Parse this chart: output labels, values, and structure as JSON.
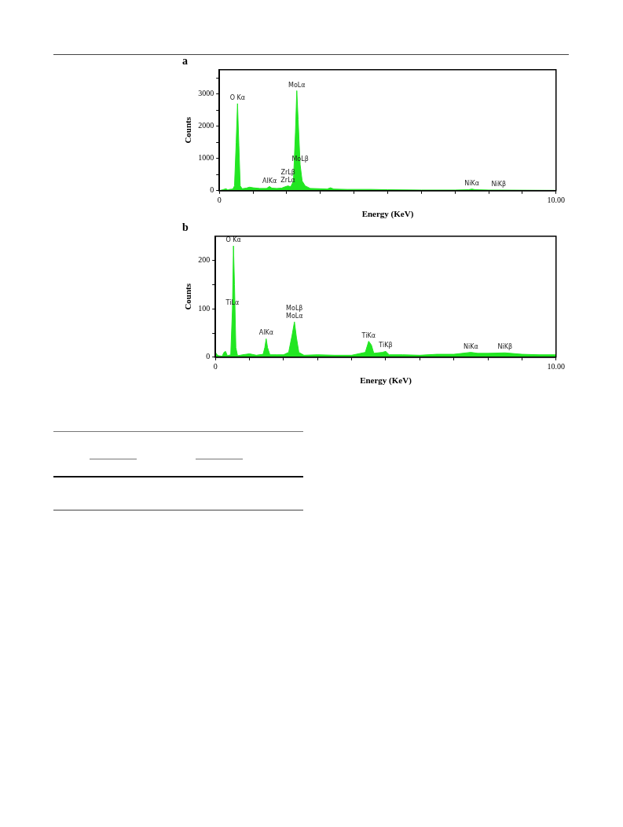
{
  "chart_data": [
    {
      "type": "area",
      "title": "a",
      "xlabel": "Energy (KeV)",
      "ylabel": "Counts",
      "color": "#22e622",
      "x": [
        0,
        0.1,
        0.2,
        0.25,
        0.3,
        0.4,
        0.45,
        0.5,
        0.54,
        0.58,
        0.62,
        0.68,
        0.8,
        0.9,
        1.0,
        1.2,
        1.4,
        1.49,
        1.56,
        1.7,
        1.85,
        1.95,
        2.04,
        2.12,
        2.2,
        2.26,
        2.3,
        2.34,
        2.4,
        2.46,
        2.55,
        2.7,
        3.0,
        3.2,
        3.3,
        3.4,
        3.8,
        4.5,
        5,
        6,
        7,
        7.4,
        7.5,
        7.6,
        8,
        8.3,
        9,
        10
      ],
      "values": [
        0,
        30,
        60,
        20,
        40,
        50,
        150,
        1500,
        2700,
        1400,
        150,
        60,
        80,
        110,
        90,
        70,
        70,
        130,
        80,
        70,
        80,
        120,
        150,
        120,
        300,
        1800,
        3100,
        2200,
        800,
        300,
        150,
        70,
        60,
        50,
        90,
        50,
        40,
        40,
        30,
        20,
        20,
        30,
        50,
        30,
        20,
        20,
        15,
        10
      ],
      "xlim": [
        0,
        10
      ],
      "ylim": [
        0,
        3750
      ],
      "xticks": [
        0,
        {
          "value": 1,
          "label": null
        },
        {
          "value": 2,
          "label": null
        },
        {
          "value": 3,
          "label": null
        },
        {
          "value": 4,
          "label": null
        },
        {
          "value": 5,
          "label": null
        },
        {
          "value": 6,
          "label": null
        },
        {
          "value": 7,
          "label": null
        },
        {
          "value": 8,
          "label": null
        },
        {
          "value": 9,
          "label": null
        },
        {
          "value": 10,
          "label": "10.00"
        }
      ],
      "yticks": [
        0,
        {
          "value": 500,
          "label": null
        },
        1000,
        {
          "value": 1500,
          "label": null
        },
        2000,
        {
          "value": 2500,
          "label": null
        },
        3000,
        {
          "value": 3500,
          "label": null
        }
      ],
      "grid": false,
      "legend": false,
      "annotations": [
        {
          "text": "O Kα",
          "x": 0.54,
          "y": 2700
        },
        {
          "text": "MoLα",
          "x": 2.3,
          "y": 3100
        },
        {
          "text": "MoLβ",
          "x": 2.4,
          "y": 800
        },
        {
          "text": "ZrLβ",
          "x": 2.04,
          "y": 150
        },
        {
          "text": "ZrLα",
          "x": 2.04,
          "y": 150
        },
        {
          "text": "AlKα",
          "x": 1.49,
          "y": 130
        },
        {
          "text": "NiKα",
          "x": 7.5,
          "y": 50
        },
        {
          "text": "NiKβ",
          "x": 8.3,
          "y": 20
        }
      ]
    },
    {
      "type": "area",
      "title": "b",
      "xlabel": "Energy (KeV)",
      "ylabel": "Counts",
      "color": "#22e622",
      "x": [
        0,
        0.05,
        0.1,
        0.2,
        0.25,
        0.3,
        0.35,
        0.45,
        0.5,
        0.53,
        0.56,
        0.6,
        0.65,
        0.8,
        1.0,
        1.2,
        1.4,
        1.45,
        1.49,
        1.53,
        1.6,
        1.8,
        2.0,
        2.15,
        2.25,
        2.32,
        2.38,
        2.45,
        2.6,
        3,
        3.5,
        4,
        4.4,
        4.5,
        4.58,
        4.65,
        4.9,
        5.0,
        5.1,
        5.5,
        6,
        6.5,
        7,
        7.5,
        7.7,
        8,
        8.5,
        9,
        9.5,
        10
      ],
      "values": [
        10,
        5,
        3,
        2,
        10,
        12,
        3,
        5,
        100,
        230,
        150,
        20,
        3,
        5,
        7,
        4,
        6,
        20,
        38,
        20,
        5,
        5,
        5,
        10,
        45,
        73,
        40,
        10,
        4,
        5,
        4,
        4,
        10,
        33,
        25,
        8,
        10,
        12,
        5,
        5,
        4,
        6,
        6,
        10,
        8,
        8,
        9,
        6,
        5,
        5
      ],
      "xlim": [
        0,
        10
      ],
      "ylim": [
        0,
        250
      ],
      "xticks": [
        0,
        {
          "value": 1,
          "label": null
        },
        {
          "value": 2,
          "label": null
        },
        {
          "value": 3,
          "label": null
        },
        {
          "value": 4,
          "label": null
        },
        {
          "value": 5,
          "label": null
        },
        {
          "value": 6,
          "label": null
        },
        {
          "value": 7,
          "label": null
        },
        {
          "value": 8,
          "label": null
        },
        {
          "value": 9,
          "label": null
        },
        {
          "value": 10,
          "label": "10.00"
        }
      ],
      "yticks": [
        0,
        {
          "value": 50,
          "label": null
        },
        100,
        {
          "value": 150,
          "label": null
        },
        200
      ],
      "grid": false,
      "legend": false,
      "annotations": [
        {
          "text": "O Kα",
          "x": 0.53,
          "y": 230
        },
        {
          "text": "TiLα",
          "x": 0.5,
          "y": 100
        },
        {
          "text": "MoLβ",
          "x": 2.32,
          "y": 73
        },
        {
          "text": "MoLα",
          "x": 2.32,
          "y": 73
        },
        {
          "text": "AlKα",
          "x": 1.49,
          "y": 38
        },
        {
          "text": "TiKα",
          "x": 4.5,
          "y": 33
        },
        {
          "text": "TiKβ",
          "x": 5.0,
          "y": 12
        },
        {
          "text": "NiKα",
          "x": 7.5,
          "y": 10
        },
        {
          "text": "NiKβ",
          "x": 8.5,
          "y": 9
        }
      ]
    }
  ]
}
